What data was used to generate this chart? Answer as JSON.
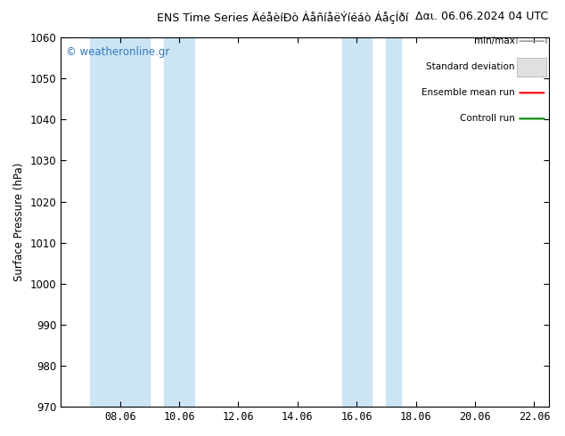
{
  "title": "ENS Time Series ÄéåèíÐò ÁåñíåëÝíéáò ÁåçÍðí",
  "title_right": "Δαι. 06.06.2024 04 UTC",
  "ylabel": "Surface Pressure (hPa)",
  "xlim_start": 6.0,
  "xlim_end": 22.5,
  "ylim_bottom": 970,
  "ylim_top": 1060,
  "ytick_step": 10,
  "xtick_labels": [
    "08.06",
    "10.06",
    "12.06",
    "14.06",
    "16.06",
    "18.06",
    "20.06",
    "22.06"
  ],
  "xtick_positions": [
    8.0,
    10.0,
    12.0,
    14.0,
    16.0,
    18.0,
    20.0,
    22.0
  ],
  "shaded_bands": [
    {
      "x_start": 7.0,
      "x_end": 9.0
    },
    {
      "x_start": 9.5,
      "x_end": 10.5
    },
    {
      "x_start": 15.5,
      "x_end": 16.5
    },
    {
      "x_start": 17.0,
      "x_end": 17.5
    }
  ],
  "shaded_color": "#cce5f5",
  "watermark_text": "© weatheronline.gr",
  "watermark_color": "#3377bb",
  "background_color": "#ffffff",
  "plot_bg_color": "#ffffff",
  "legend_labels": [
    "min/max",
    "Standard deviation",
    "Ensemble mean run",
    "Controll run"
  ],
  "legend_colors": [
    "#999999",
    "#cccccc",
    "#ff0000",
    "#008800"
  ],
  "legend_styles": [
    "minmax",
    "rect",
    "line",
    "line"
  ]
}
